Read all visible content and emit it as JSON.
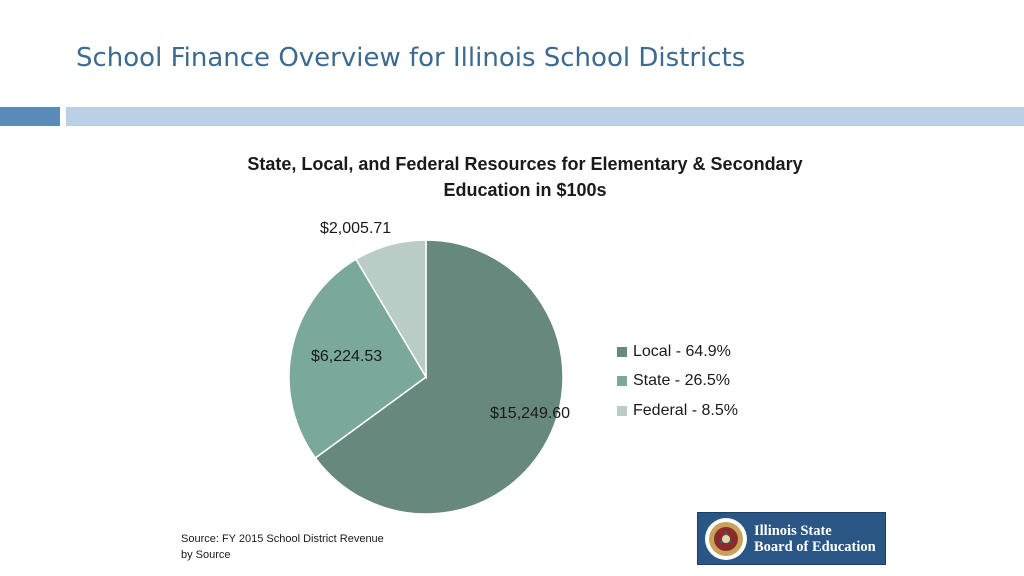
{
  "slide": {
    "title": "School Finance Overview for Illinois School Districts",
    "source_line1": "Source: FY 2015 School District Revenue",
    "source_line2": "by  Source"
  },
  "logo": {
    "line1": "Illinois State",
    "line2": "Board of Education"
  },
  "chart_data": {
    "type": "pie",
    "title_line1": "State, Local, and Federal Resources for Elementary & Secondary",
    "title_line2": "Education in $100s",
    "categories": [
      "Local",
      "State",
      "Federal"
    ],
    "values": [
      15249.6,
      6224.53,
      2005.71
    ],
    "value_labels": [
      "$15,249.60",
      "$6,224.53",
      "$2,005.71"
    ],
    "legend_labels": [
      "Local - 64.9%",
      "State - 26.5%",
      "Federal - 8.5%"
    ],
    "colors": [
      "#67897d",
      "#7aa89b",
      "#b9cdc6"
    ],
    "legend_position": "right",
    "start_angle": "12 o'clock",
    "direction": "clockwise"
  }
}
